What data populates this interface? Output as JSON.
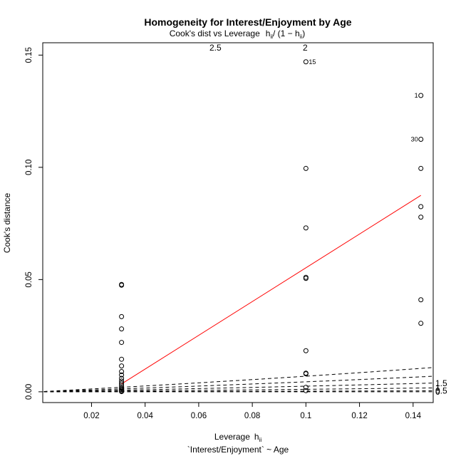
{
  "chart_data": {
    "type": "scatter",
    "title": "Homogeneity for Interest/Enjoyment by Age",
    "subtitle": {
      "main": "Cook's dist vs Leverage",
      "formula_h": "h",
      "formula_ii": "ii",
      "formula_mid": "/ (1 − ",
      "formula_end": ")"
    },
    "xlabel": {
      "main": "Leverage",
      "h": "h",
      "ii": "ii"
    },
    "xlabel2": "`Interest/Enjoyment` ~ Age",
    "ylabel": "Cook's distance",
    "xlim": [
      0.0018,
      0.1475
    ],
    "ylim": [
      -0.0048,
      0.1555
    ],
    "xticks": [
      0.02,
      0.04,
      0.06,
      0.08,
      0.1,
      0.12,
      0.14
    ],
    "xtick_labels": [
      "0.02",
      "0.04",
      "0.06",
      "0.08",
      "0.1",
      "0.12",
      "0.14"
    ],
    "yticks": [
      0.0,
      0.05,
      0.1,
      0.15
    ],
    "ytick_labels": [
      "0.00",
      "0.05",
      "0.10",
      "0.15"
    ],
    "contour_right_ticks": [
      "0",
      "0.5",
      "1",
      "1.5"
    ],
    "contour_values": [
      0,
      0.5,
      1,
      1.5,
      2,
      2.5
    ],
    "contour_labels": [
      "0",
      "0.5",
      "1",
      "1.5",
      "2",
      "2.5"
    ],
    "points": [
      {
        "x": 0.0312,
        "y": 0.0478
      },
      {
        "x": 0.0312,
        "y": 0.0475
      },
      {
        "x": 0.0312,
        "y": 0.0335
      },
      {
        "x": 0.0312,
        "y": 0.028
      },
      {
        "x": 0.0312,
        "y": 0.022
      },
      {
        "x": 0.0312,
        "y": 0.0145
      },
      {
        "x": 0.0312,
        "y": 0.0115
      },
      {
        "x": 0.0312,
        "y": 0.009
      },
      {
        "x": 0.0312,
        "y": 0.0075
      },
      {
        "x": 0.0312,
        "y": 0.006
      },
      {
        "x": 0.0312,
        "y": 0.0048
      },
      {
        "x": 0.0312,
        "y": 0.0038
      },
      {
        "x": 0.0312,
        "y": 0.003
      },
      {
        "x": 0.0312,
        "y": 0.0022
      },
      {
        "x": 0.0312,
        "y": 0.0015
      },
      {
        "x": 0.0312,
        "y": 0.0009
      },
      {
        "x": 0.0312,
        "y": 0.0004
      },
      {
        "x": 0.0312,
        "y": 0.0001
      },
      {
        "x": 0.1,
        "y": 0.147,
        "label": "15"
      },
      {
        "x": 0.1,
        "y": 0.0995
      },
      {
        "x": 0.1,
        "y": 0.073
      },
      {
        "x": 0.1,
        "y": 0.051
      },
      {
        "x": 0.1,
        "y": 0.0505
      },
      {
        "x": 0.1,
        "y": 0.0183
      },
      {
        "x": 0.1,
        "y": 0.0083
      },
      {
        "x": 0.1,
        "y": 0.008
      },
      {
        "x": 0.1,
        "y": 0.002
      },
      {
        "x": 0.1,
        "y": 0.0005
      },
      {
        "x": 0.1429,
        "y": 0.132,
        "label": "1"
      },
      {
        "x": 0.1429,
        "y": 0.1125,
        "label": "30"
      },
      {
        "x": 0.1429,
        "y": 0.0995
      },
      {
        "x": 0.1429,
        "y": 0.0825
      },
      {
        "x": 0.1429,
        "y": 0.0778
      },
      {
        "x": 0.1429,
        "y": 0.041
      },
      {
        "x": 0.1429,
        "y": 0.0305
      }
    ],
    "smooth_line": {
      "color": "#ff0000",
      "x": [
        0.0312,
        0.1429
      ],
      "y": [
        0.0035,
        0.0875
      ]
    },
    "grid": false,
    "colors": {
      "points": "#000000",
      "smooth": "#ff0000",
      "contours": "#000000",
      "frame": "#000000"
    }
  }
}
